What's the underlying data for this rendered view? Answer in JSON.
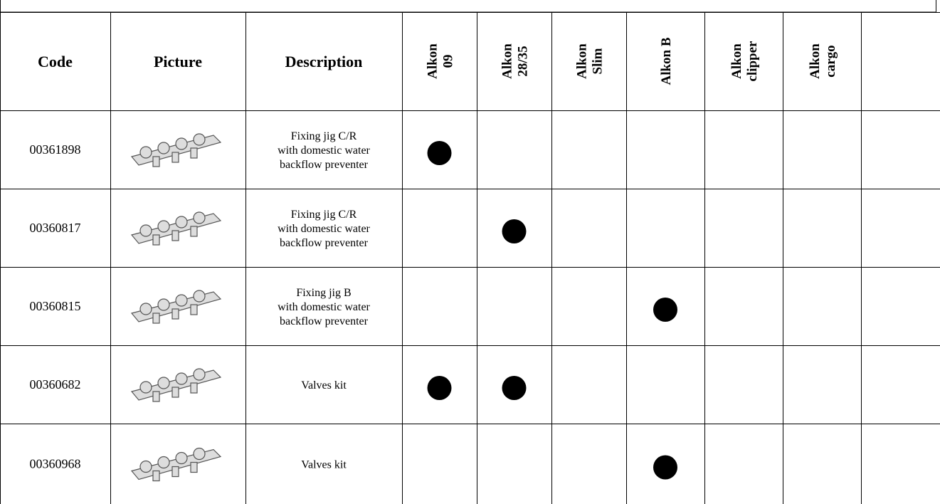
{
  "table": {
    "header": {
      "code": "Code",
      "picture": "Picture",
      "description": "Description",
      "models": [
        [
          "Alkon",
          "09"
        ],
        [
          "Alkon",
          "28/35"
        ],
        [
          "Alkon",
          "Slim"
        ],
        [
          "Alkon B"
        ],
        [
          "Alkon",
          "clipper"
        ],
        [
          "Alkon",
          "cargo"
        ]
      ]
    },
    "rows": [
      {
        "code": "00361898",
        "description": [
          "Fixing jig C/R",
          "with domestic water",
          "backflow preventer"
        ],
        "fits": [
          true,
          false,
          false,
          false,
          false,
          false
        ]
      },
      {
        "code": "00360817",
        "description": [
          "Fixing jig C/R",
          "with domestic water",
          "backflow preventer"
        ],
        "fits": [
          false,
          true,
          false,
          false,
          false,
          false
        ]
      },
      {
        "code": "00360815",
        "description": [
          "Fixing jig B",
          "with domestic water",
          "backflow preventer"
        ],
        "fits": [
          false,
          false,
          false,
          true,
          false,
          false
        ]
      },
      {
        "code": "00360682",
        "description": [
          "Valves kit"
        ],
        "fits": [
          true,
          true,
          false,
          false,
          false,
          false
        ]
      },
      {
        "code": "00360968",
        "description": [
          "Valves kit"
        ],
        "fits": [
          false,
          false,
          false,
          true,
          false,
          false
        ]
      }
    ]
  }
}
